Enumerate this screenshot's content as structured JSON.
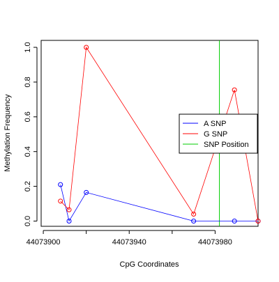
{
  "chart_data": {
    "type": "line",
    "title": "",
    "xlabel": "CpG Coordinates",
    "ylabel": "Methylation Frequency",
    "xlim": [
      44073899,
      44074000
    ],
    "ylim": [
      -0.03,
      1.04
    ],
    "x_ticks": [
      {
        "value": 44073900,
        "label": "44073900"
      },
      {
        "value": 44073940,
        "label": "44073940"
      },
      {
        "value": 44073980,
        "label": "44073980"
      }
    ],
    "x_minor_ticks": [
      44073920,
      44073960
    ],
    "y_ticks": [
      {
        "value": 0.0,
        "label": "0.0"
      },
      {
        "value": 0.2,
        "label": "0.2"
      },
      {
        "value": 0.4,
        "label": "0.4"
      },
      {
        "value": 0.6,
        "label": "0.6"
      },
      {
        "value": 0.8,
        "label": "0.8"
      },
      {
        "value": 1.0,
        "label": "1.0"
      }
    ],
    "series": [
      {
        "name": "A SNP",
        "color": "#0000ff",
        "points": [
          {
            "x": 44073908,
            "y": 0.21
          },
          {
            "x": 44073912,
            "y": 0.0
          },
          {
            "x": 44073920,
            "y": 0.165
          },
          {
            "x": 44073970,
            "y": 0.0
          },
          {
            "x": 44073989,
            "y": 0.0
          },
          {
            "x": 44074000,
            "y": 0.0
          }
        ]
      },
      {
        "name": "G SNP",
        "color": "#ff0000",
        "points": [
          {
            "x": 44073908,
            "y": 0.115
          },
          {
            "x": 44073912,
            "y": 0.065
          },
          {
            "x": 44073920,
            "y": 1.0
          },
          {
            "x": 44073970,
            "y": 0.04
          },
          {
            "x": 44073989,
            "y": 0.755
          },
          {
            "x": 44074000,
            "y": 0.0
          }
        ]
      }
    ],
    "snp_position": {
      "name": "SNP Position",
      "color": "#00cc00",
      "x": 44073982
    },
    "legend": {
      "position": "right",
      "items": [
        {
          "label": "A SNP",
          "color": "#0000ff"
        },
        {
          "label": "G SNP",
          "color": "#ff0000"
        },
        {
          "label": "SNP Position",
          "color": "#00cc00"
        }
      ]
    },
    "grid": false
  }
}
